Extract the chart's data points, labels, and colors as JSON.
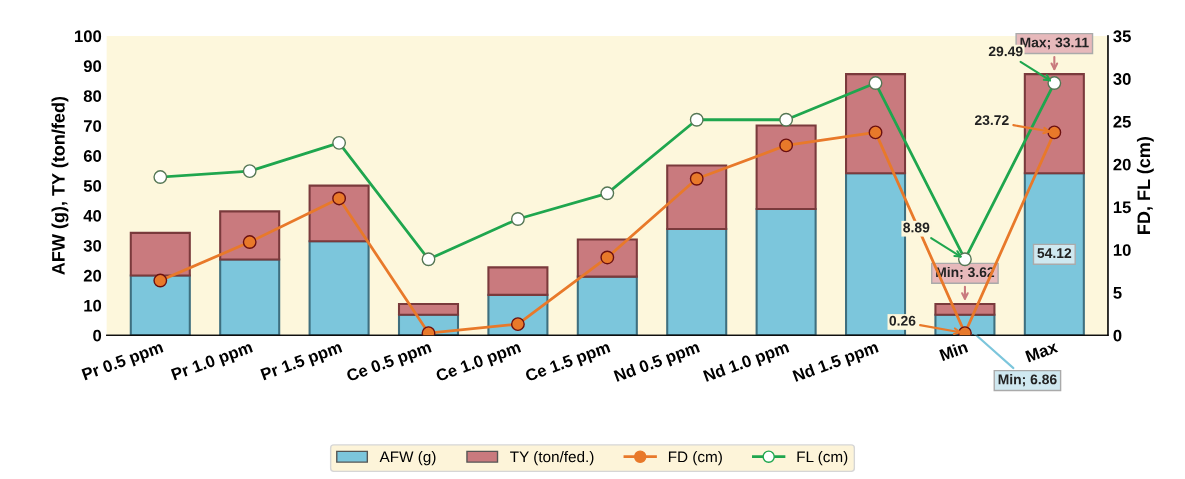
{
  "chart_data": {
    "type": "bar",
    "stacked": true,
    "categories": [
      "Pr 0.5 ppm",
      "Pr 1.0 ppm",
      "Pr 1.5 ppm",
      "Ce 0.5 ppm",
      "Ce 1.0 ppm",
      "Ce 1.5 ppm",
      "Nd 0.5 ppm",
      "Nd 1.0 ppm",
      "Nd 1.5 ppm",
      "Min",
      "Max"
    ],
    "ylabel": "AFW (g), TY (ton/fed)",
    "y2label": "FD, FL (cm)",
    "ylim": [
      0,
      100
    ],
    "yticks": [
      0,
      10,
      20,
      30,
      40,
      50,
      60,
      70,
      80,
      90,
      100
    ],
    "y2lim": [
      0,
      35
    ],
    "y2ticks": [
      0,
      5,
      10,
      15,
      20,
      25,
      30,
      35
    ],
    "grid": false,
    "legend": "bottom",
    "marker": "circle",
    "series": [
      {
        "name": "AFW (g)",
        "color": "#7cc6dc",
        "values": [
          20,
          25.3,
          31.4,
          6.86,
          13.5,
          19.6,
          35.5,
          42.2,
          54.12,
          6.86,
          54.12
        ],
        "value_labels": [
          null,
          null,
          null,
          null,
          null,
          null,
          null,
          null,
          null,
          "Min; 6.86",
          "54.12"
        ]
      },
      {
        "name": "TY (ton/fed.)",
        "color": "#c97a7e",
        "values": [
          14.2,
          16.1,
          18.6,
          3.62,
          9.2,
          12.4,
          21.2,
          27.9,
          33.11,
          3.62,
          33.11
        ],
        "value_labels": [
          null,
          null,
          null,
          null,
          null,
          null,
          null,
          null,
          null,
          "Min; 3.62",
          "Max; 33.11"
        ]
      },
      {
        "name": "FD (cm)",
        "type": "line",
        "axis": "y2",
        "color": "#e8792a",
        "values": [
          6.4,
          10.9,
          16.0,
          0.26,
          1.3,
          9.1,
          18.3,
          22.2,
          23.72,
          0.26,
          23.72
        ],
        "value_labels": [
          null,
          null,
          null,
          null,
          null,
          null,
          null,
          null,
          null,
          "0.26",
          "23.72"
        ]
      },
      {
        "name": "FL (cm)",
        "type": "line",
        "axis": "y2",
        "color": "#1fa64e",
        "values": [
          18.5,
          19.2,
          22.5,
          8.89,
          13.6,
          16.6,
          25.2,
          25.2,
          29.49,
          8.89,
          29.49
        ],
        "value_labels": [
          null,
          null,
          null,
          null,
          null,
          null,
          null,
          null,
          null,
          "8.89",
          "29.49"
        ]
      }
    ]
  }
}
